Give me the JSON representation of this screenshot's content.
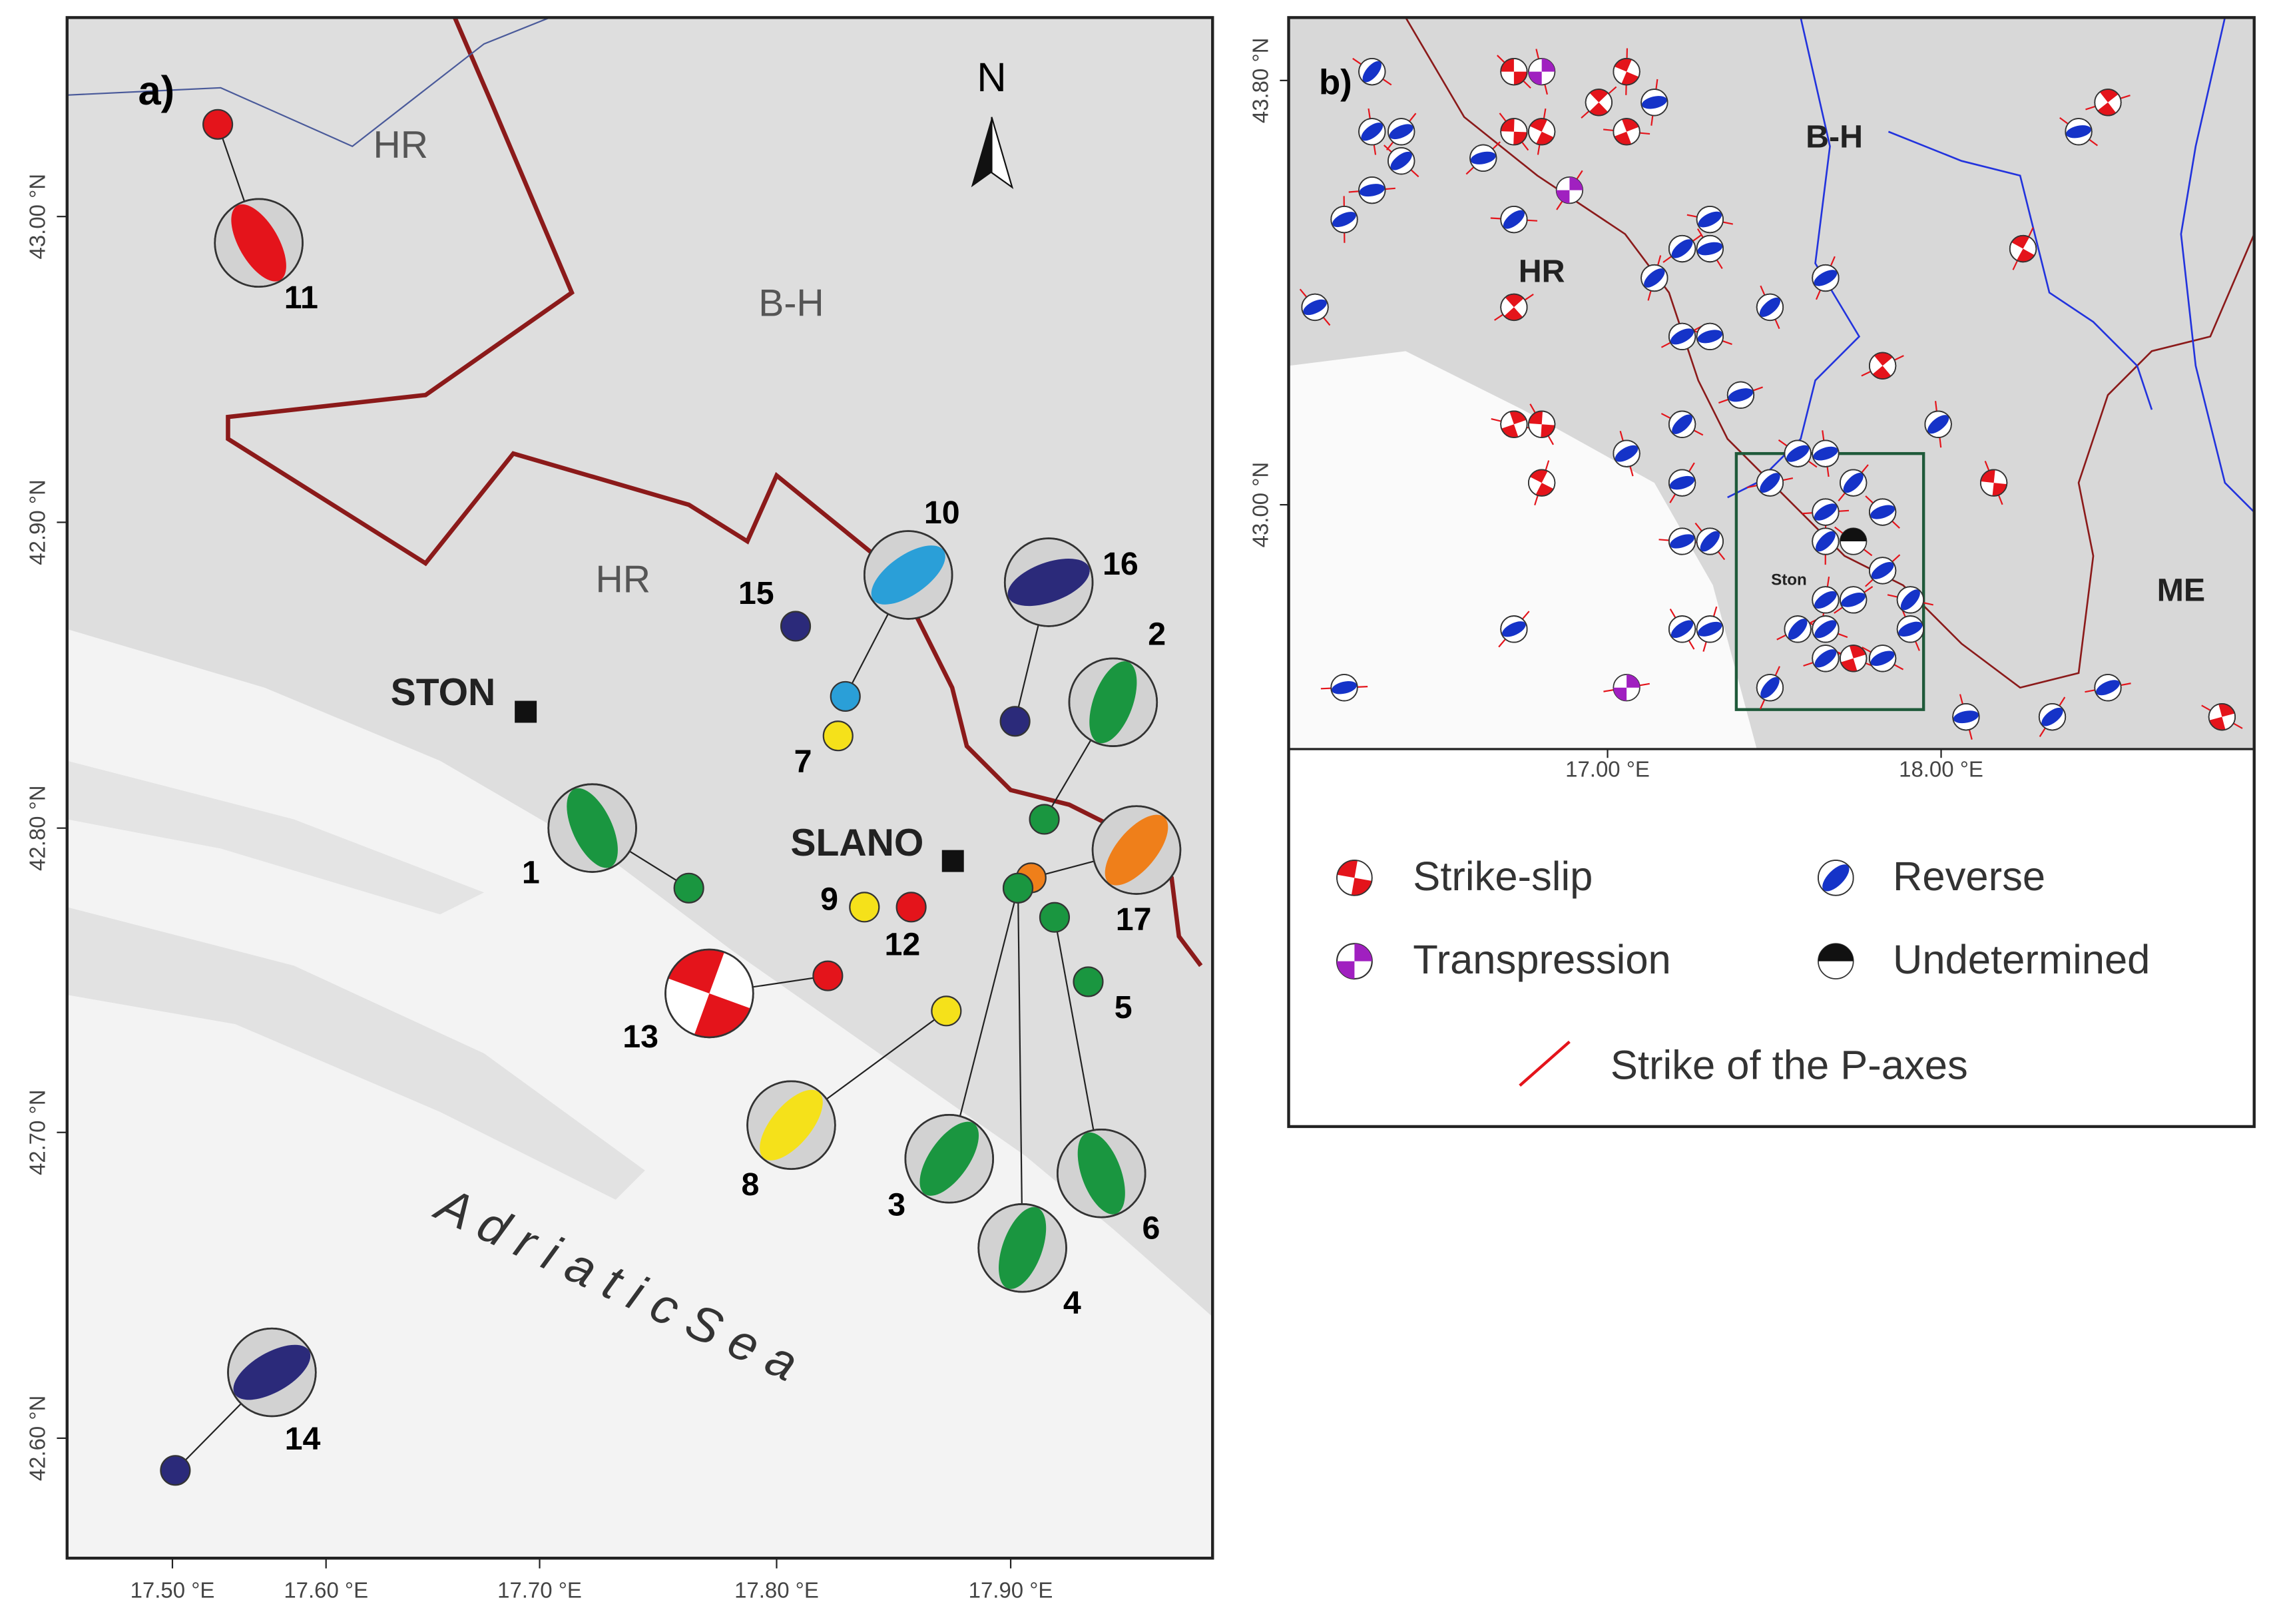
{
  "panel_a": {
    "label": "a)",
    "north": "N",
    "lon_ticks": [
      "17.50 °E",
      "17.60 °E",
      "17.70 °E",
      "17.80 °E",
      "17.90 °E"
    ],
    "lat_ticks": [
      "43.00 °N",
      "42.90 °N",
      "42.80 °N",
      "42.70 °N",
      "42.60 °N"
    ],
    "places": [
      "HR",
      "B-H",
      "HR",
      "STON",
      "SLANO"
    ],
    "sea": "A d r i a t i c   S e a",
    "events": [
      "11",
      "10",
      "15",
      "7",
      "16",
      "2",
      "1",
      "17",
      "9",
      "12",
      "13",
      "5",
      "3",
      "4",
      "6",
      "8",
      "14"
    ]
  },
  "panel_b": {
    "label": "b)",
    "lon_ticks": [
      "17.00 °E",
      "18.00 °E"
    ],
    "lat_ticks": [
      "43.80 °N",
      "43.00 °N"
    ],
    "places": [
      "HR",
      "B-H",
      "ME",
      "Ston"
    ],
    "legend": [
      "Strike-slip",
      "Reverse",
      "Transpression",
      "Undetermined",
      "Strike of the P-axes"
    ]
  }
}
